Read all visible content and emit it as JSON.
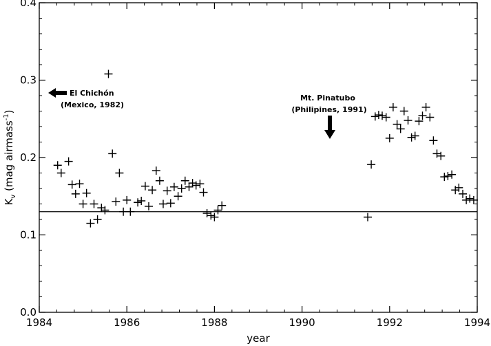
{
  "chart_data": {
    "type": "scatter",
    "marker": "plus",
    "xlabel": "year",
    "ylabel_main": "K",
    "ylabel_sub": "v",
    "ylabel_rest": " (mag airmass",
    "ylabel_sup": "-1",
    "ylabel_close": ")",
    "xlim": [
      1984,
      1994
    ],
    "ylim": [
      0.0,
      0.4
    ],
    "xticks": [
      1984,
      1986,
      1988,
      1990,
      1992,
      1994
    ],
    "xtick_labels": [
      "1984",
      "1986",
      "1988",
      "1990",
      "1992",
      "1994"
    ],
    "yticks": [
      0.0,
      0.1,
      0.2,
      0.3,
      0.4
    ],
    "ytick_labels": [
      "0.0",
      "0.1",
      "0.2",
      "0.3",
      "0.4"
    ],
    "grid": false,
    "reference_line": {
      "y": 0.13
    },
    "annotations": [
      {
        "lines": [
          "El Chichón",
          "(Mexico, 1982)"
        ],
        "arrow": "left"
      },
      {
        "lines": [
          "Mt. Pinatubo",
          "(Philipines, 1991)"
        ],
        "arrow": "down"
      }
    ],
    "points": [
      {
        "x": 1984.42,
        "y": 0.19
      },
      {
        "x": 1984.5,
        "y": 0.18
      },
      {
        "x": 1984.67,
        "y": 0.195
      },
      {
        "x": 1984.75,
        "y": 0.165
      },
      {
        "x": 1984.83,
        "y": 0.153
      },
      {
        "x": 1984.92,
        "y": 0.166
      },
      {
        "x": 1985.0,
        "y": 0.14
      },
      {
        "x": 1985.08,
        "y": 0.154
      },
      {
        "x": 1985.17,
        "y": 0.115
      },
      {
        "x": 1985.25,
        "y": 0.14
      },
      {
        "x": 1985.33,
        "y": 0.12
      },
      {
        "x": 1985.42,
        "y": 0.135
      },
      {
        "x": 1985.5,
        "y": 0.132
      },
      {
        "x": 1985.58,
        "y": 0.308
      },
      {
        "x": 1985.67,
        "y": 0.205
      },
      {
        "x": 1985.75,
        "y": 0.143
      },
      {
        "x": 1985.83,
        "y": 0.18
      },
      {
        "x": 1985.92,
        "y": 0.13
      },
      {
        "x": 1986.0,
        "y": 0.145
      },
      {
        "x": 1986.08,
        "y": 0.13
      },
      {
        "x": 1986.25,
        "y": 0.142
      },
      {
        "x": 1986.33,
        "y": 0.144
      },
      {
        "x": 1986.42,
        "y": 0.163
      },
      {
        "x": 1986.5,
        "y": 0.137
      },
      {
        "x": 1986.58,
        "y": 0.158
      },
      {
        "x": 1986.67,
        "y": 0.183
      },
      {
        "x": 1986.75,
        "y": 0.17
      },
      {
        "x": 1986.83,
        "y": 0.14
      },
      {
        "x": 1986.92,
        "y": 0.157
      },
      {
        "x": 1987.0,
        "y": 0.141
      },
      {
        "x": 1987.08,
        "y": 0.162
      },
      {
        "x": 1987.17,
        "y": 0.15
      },
      {
        "x": 1987.25,
        "y": 0.16
      },
      {
        "x": 1987.33,
        "y": 0.17
      },
      {
        "x": 1987.42,
        "y": 0.162
      },
      {
        "x": 1987.5,
        "y": 0.167
      },
      {
        "x": 1987.58,
        "y": 0.164
      },
      {
        "x": 1987.67,
        "y": 0.166
      },
      {
        "x": 1987.75,
        "y": 0.155
      },
      {
        "x": 1987.83,
        "y": 0.128
      },
      {
        "x": 1987.92,
        "y": 0.125
      },
      {
        "x": 1988.0,
        "y": 0.123
      },
      {
        "x": 1988.08,
        "y": 0.132
      },
      {
        "x": 1988.17,
        "y": 0.138
      },
      {
        "x": 1991.5,
        "y": 0.123
      },
      {
        "x": 1991.58,
        "y": 0.191
      },
      {
        "x": 1991.67,
        "y": 0.253
      },
      {
        "x": 1991.75,
        "y": 0.255
      },
      {
        "x": 1991.83,
        "y": 0.254
      },
      {
        "x": 1991.92,
        "y": 0.252
      },
      {
        "x": 1992.0,
        "y": 0.225
      },
      {
        "x": 1992.08,
        "y": 0.265
      },
      {
        "x": 1992.17,
        "y": 0.243
      },
      {
        "x": 1992.25,
        "y": 0.237
      },
      {
        "x": 1992.33,
        "y": 0.26
      },
      {
        "x": 1992.42,
        "y": 0.248
      },
      {
        "x": 1992.5,
        "y": 0.226
      },
      {
        "x": 1992.58,
        "y": 0.228
      },
      {
        "x": 1992.67,
        "y": 0.247
      },
      {
        "x": 1992.75,
        "y": 0.254
      },
      {
        "x": 1992.83,
        "y": 0.265
      },
      {
        "x": 1992.92,
        "y": 0.252
      },
      {
        "x": 1993.0,
        "y": 0.222
      },
      {
        "x": 1993.08,
        "y": 0.205
      },
      {
        "x": 1993.17,
        "y": 0.202
      },
      {
        "x": 1993.25,
        "y": 0.175
      },
      {
        "x": 1993.33,
        "y": 0.176
      },
      {
        "x": 1993.42,
        "y": 0.178
      },
      {
        "x": 1993.5,
        "y": 0.158
      },
      {
        "x": 1993.58,
        "y": 0.161
      },
      {
        "x": 1993.67,
        "y": 0.153
      },
      {
        "x": 1993.75,
        "y": 0.145
      },
      {
        "x": 1993.83,
        "y": 0.147
      },
      {
        "x": 1993.92,
        "y": 0.145
      }
    ]
  }
}
